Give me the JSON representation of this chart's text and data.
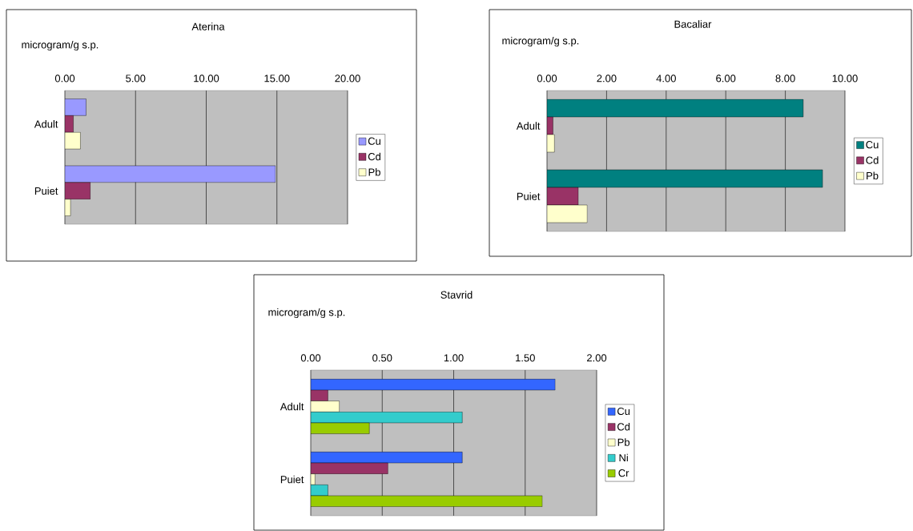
{
  "chart_data": [
    {
      "type": "bar",
      "orientation": "horizontal",
      "title": "Aterina",
      "xlabel": "microgram/g s.p.",
      "categories": [
        "Adult",
        "Puiet"
      ],
      "series": [
        {
          "name": "Cu",
          "color": "#9999ff",
          "values": [
            1.5,
            14.9
          ]
        },
        {
          "name": "Cd",
          "color": "#993366",
          "values": [
            0.6,
            1.8
          ]
        },
        {
          "name": "Pb",
          "color": "#ffffcc",
          "values": [
            1.1,
            0.4
          ]
        }
      ],
      "xlim": [
        0,
        20
      ],
      "xticks": [
        {
          "value": 0,
          "label": "0.00"
        },
        {
          "value": 5,
          "label": "5.00"
        },
        {
          "value": 10,
          "label": "10.00"
        },
        {
          "value": 15,
          "label": "15.00"
        },
        {
          "value": 20,
          "label": "20.00"
        }
      ],
      "grid": "x",
      "legend": "right"
    },
    {
      "type": "bar",
      "orientation": "horizontal",
      "title": "Bacaliar",
      "xlabel": "microgram/g s.p.",
      "categories": [
        "Adult",
        "Puiet"
      ],
      "series": [
        {
          "name": "Cu",
          "color": "#008080",
          "values": [
            8.6,
            9.25
          ]
        },
        {
          "name": "Cd",
          "color": "#993366",
          "values": [
            0.2,
            1.05
          ]
        },
        {
          "name": "Pb",
          "color": "#ffffcc",
          "values": [
            0.25,
            1.35
          ]
        }
      ],
      "xlim": [
        0,
        10
      ],
      "xticks": [
        {
          "value": 0,
          "label": "0.00"
        },
        {
          "value": 2,
          "label": "2.00"
        },
        {
          "value": 4,
          "label": "4.00"
        },
        {
          "value": 6,
          "label": "6.00"
        },
        {
          "value": 8,
          "label": "8.00"
        },
        {
          "value": 10,
          "label": "10.00"
        }
      ],
      "grid": "x",
      "legend": "right"
    },
    {
      "type": "bar",
      "orientation": "horizontal",
      "title": "Stavrid",
      "xlabel": "microgram/g s.p.",
      "categories": [
        "Adult",
        "Puiet"
      ],
      "series": [
        {
          "name": "Cu",
          "color": "#3366ff",
          "values": [
            1.71,
            1.06
          ]
        },
        {
          "name": "Cd",
          "color": "#993366",
          "values": [
            0.12,
            0.54
          ]
        },
        {
          "name": "Pb",
          "color": "#ffffcc",
          "values": [
            0.2,
            0.03
          ]
        },
        {
          "name": "Ni",
          "color": "#33cccc",
          "values": [
            1.06,
            0.12
          ]
        },
        {
          "name": "Cr",
          "color": "#99cc00",
          "values": [
            0.41,
            1.62
          ]
        }
      ],
      "xlim": [
        0,
        2
      ],
      "xticks": [
        {
          "value": 0,
          "label": "0.00"
        },
        {
          "value": 0.5,
          "label": "0.50"
        },
        {
          "value": 1,
          "label": "1.00"
        },
        {
          "value": 1.5,
          "label": "1.50"
        },
        {
          "value": 2,
          "label": "2.00"
        }
      ],
      "grid": "x",
      "legend": "right"
    }
  ]
}
